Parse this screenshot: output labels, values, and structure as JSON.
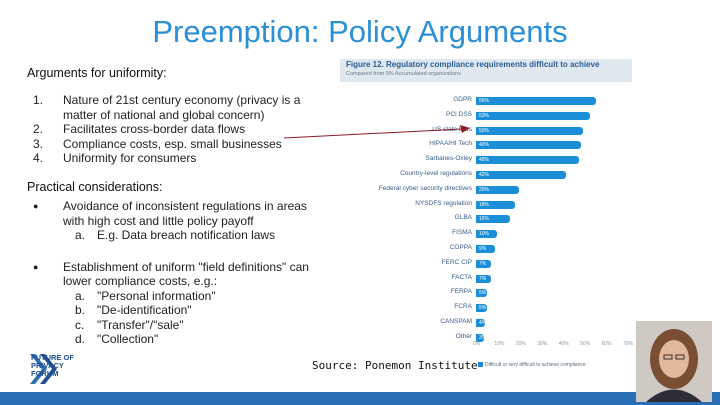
{
  "title": "Preemption: Policy Arguments",
  "uniformity": {
    "heading": "Arguments for uniformity:",
    "items": [
      {
        "num": "1.",
        "text": "Nature of 21st century economy (privacy is a matter of national and global concern)"
      },
      {
        "num": "2.",
        "text": "Facilitates cross-border data flows"
      },
      {
        "num": "3.",
        "text": "Compliance costs, esp. small businesses"
      },
      {
        "num": "4.",
        "text": "Uniformity for consumers"
      }
    ]
  },
  "practical": {
    "heading": "Practical considerations:",
    "bullets": [
      {
        "text": "Avoidance of inconsistent regulations in areas with high cost and little policy payoff",
        "subs": [
          {
            "mark": "a.",
            "text": "E.g. Data breach notification laws"
          }
        ]
      },
      {
        "text": "Establishment of uniform \"field definitions\" can lower compliance costs, e.g.:",
        "subs": [
          {
            "mark": "a.",
            "text": "\"Personal information\""
          },
          {
            "mark": "b.",
            "text": "\"De-identification\""
          },
          {
            "mark": "c.",
            "text": "\"Transfer\"/\"sale\""
          },
          {
            "mark": "d.",
            "text": "\"Collection\""
          }
        ]
      }
    ]
  },
  "figure": {
    "title": "Figure 12. Regulatory compliance requirements difficult to achieve",
    "subtitle": "Compared from 5% Accumulated organizations",
    "legend": "Difficult or very difficult to achieve compliance"
  },
  "chart_data": {
    "type": "bar",
    "orientation": "horizontal",
    "title": "Figure 12. Regulatory compliance requirements difficult to achieve",
    "categories": [
      "GDPR",
      "PCI DSS",
      "US state laws",
      "HIPAA/HI Tech",
      "Sarbanes-Oxley",
      "Country-level regulations",
      "Federal cyber security directives",
      "NYSDFS regulation",
      "GLBA",
      "FISMA",
      "COPPA",
      "FERC CIP",
      "FACTA",
      "FERPA",
      "FCRA",
      "CANSPAM",
      "Other"
    ],
    "values": [
      56,
      53,
      50,
      49,
      48,
      42,
      20,
      18,
      16,
      10,
      9,
      7,
      7,
      5,
      5,
      4,
      3
    ],
    "xlim": [
      0,
      70
    ],
    "ticks": [
      "0%",
      "10%",
      "20%",
      "30%",
      "40%",
      "50%",
      "60%",
      "70%"
    ],
    "series": [
      {
        "name": "Difficult or very difficult to achieve compliance",
        "values": [
          56,
          53,
          50,
          49,
          48,
          42,
          20,
          18,
          16,
          10,
          9,
          7,
          7,
          5,
          5,
          4,
          3
        ]
      }
    ],
    "color": "#1a8fd8"
  },
  "source": "Source: Ponemon Institute",
  "logo": {
    "line1": "FUTURE OF",
    "line2": "PRIVACY",
    "line3": "FORUM"
  },
  "colors": {
    "title": "#2b8fd6",
    "bar": "#1a8fd8",
    "footer": "#2a6fb5"
  }
}
